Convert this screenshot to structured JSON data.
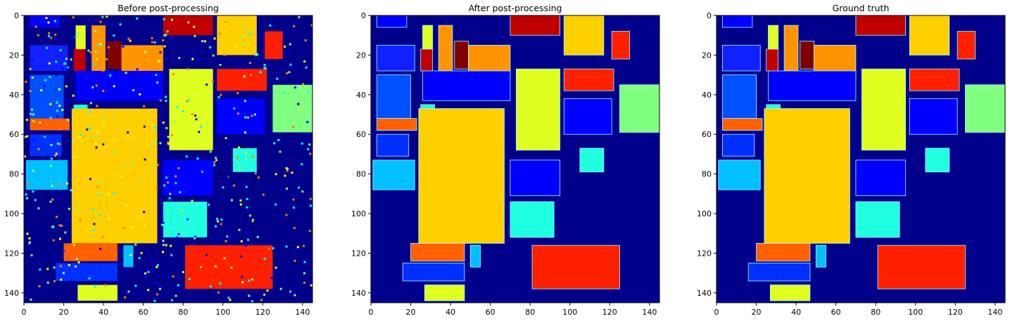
{
  "figure": {
    "panels": [
      {
        "id": "before",
        "title": "Before post-processing"
      },
      {
        "id": "after",
        "title": "After post-processing"
      },
      {
        "id": "gt",
        "title": "Ground truth"
      }
    ]
  },
  "chart_data": [
    {
      "type": "heatmap",
      "title": "Before post-processing",
      "xlabel": "",
      "ylabel": "",
      "xlim": [
        0,
        145
      ],
      "ylim": [
        145,
        0
      ],
      "xticks": [
        0,
        20,
        40,
        60,
        80,
        100,
        120,
        140
      ],
      "yticks": [
        0,
        20,
        40,
        60,
        80,
        100,
        120,
        140
      ],
      "colormap": "jet",
      "background_class_color": "#00008b",
      "grid": false,
      "noise": true
    },
    {
      "type": "heatmap",
      "title": "After post-processing",
      "xlabel": "",
      "ylabel": "",
      "xlim": [
        0,
        145
      ],
      "ylim": [
        145,
        0
      ],
      "xticks": [
        0,
        20,
        40,
        60,
        80,
        100,
        120,
        140
      ],
      "yticks": [
        0,
        20,
        40,
        60,
        80,
        100,
        120,
        140
      ],
      "colormap": "jet",
      "background_class_color": "#00008b",
      "grid": false,
      "noise": false
    },
    {
      "type": "heatmap",
      "title": "Ground truth",
      "xlabel": "",
      "ylabel": "",
      "xlim": [
        0,
        145
      ],
      "ylim": [
        145,
        0
      ],
      "xticks": [
        0,
        20,
        40,
        60,
        80,
        100,
        120,
        140
      ],
      "yticks": [
        0,
        20,
        40,
        60,
        80,
        100,
        120,
        140
      ],
      "colormap": "jet",
      "background_class_color": "#00008b",
      "grid": false,
      "noise": false
    }
  ],
  "class_colors": {
    "c1": "#0000ff",
    "c2": "#0050ff",
    "c3": "#00c0ff",
    "c4": "#20ffdf",
    "c5": "#80ff80",
    "c6": "#e0ff20",
    "c7": "#ffd000",
    "c8": "#ff9400",
    "c9": "#ff6000",
    "c10": "#ff2000",
    "c11": "#c00000",
    "c12": "#800000",
    "c13": "#1020ff",
    "c14": "#0030ff"
  },
  "class_regions": [
    {
      "cls": "c1",
      "x0": 3,
      "y0": 0,
      "x1": 18,
      "y1": 6
    },
    {
      "cls": "c13",
      "x0": 3,
      "y0": 15,
      "x1": 22,
      "y1": 28
    },
    {
      "cls": "c2",
      "x0": 3,
      "y0": 30,
      "x1": 20,
      "y1": 52
    },
    {
      "cls": "c9",
      "x0": 3,
      "y0": 52,
      "x1": 23,
      "y1": 58
    },
    {
      "cls": "c14",
      "x0": 3,
      "y0": 60,
      "x1": 19,
      "y1": 71
    },
    {
      "cls": "c3",
      "x0": 1,
      "y0": 73,
      "x1": 22,
      "y1": 88
    },
    {
      "cls": "c6",
      "x0": 26,
      "y0": 5,
      "x1": 31,
      "y1": 17
    },
    {
      "cls": "c11",
      "x0": 25,
      "y0": 17,
      "x1": 31,
      "y1": 28
    },
    {
      "cls": "c8",
      "x0": 34,
      "y0": 5,
      "x1": 41,
      "y1": 28
    },
    {
      "cls": "c12",
      "x0": 42,
      "y0": 13,
      "x1": 49,
      "y1": 27
    },
    {
      "cls": "c8",
      "x0": 49,
      "y0": 15,
      "x1": 70,
      "y1": 30
    },
    {
      "cls": "c4",
      "x0": 25,
      "y0": 45,
      "x1": 32,
      "y1": 69
    },
    {
      "cls": "c1",
      "x0": 26,
      "y0": 28,
      "x1": 70,
      "y1": 43
    },
    {
      "cls": "c7",
      "x0": 24,
      "y0": 47,
      "x1": 67,
      "y1": 115
    },
    {
      "cls": "c11",
      "x0": 70,
      "y0": 0,
      "x1": 95,
      "y1": 10
    },
    {
      "cls": "c7",
      "x0": 97,
      "y0": 0,
      "x1": 117,
      "y1": 20
    },
    {
      "cls": "c10",
      "x0": 121,
      "y0": 8,
      "x1": 130,
      "y1": 22
    },
    {
      "cls": "c6",
      "x0": 73,
      "y0": 27,
      "x1": 95,
      "y1": 68
    },
    {
      "cls": "c10",
      "x0": 97,
      "y0": 27,
      "x1": 122,
      "y1": 38
    },
    {
      "cls": "c5",
      "x0": 125,
      "y0": 35,
      "x1": 145,
      "y1": 59
    },
    {
      "cls": "c1",
      "x0": 97,
      "y0": 42,
      "x1": 121,
      "y1": 60
    },
    {
      "cls": "c1",
      "x0": 70,
      "y0": 73,
      "x1": 95,
      "y1": 91
    },
    {
      "cls": "c4",
      "x0": 70,
      "y0": 94,
      "x1": 92,
      "y1": 112
    },
    {
      "cls": "c4",
      "x0": 105,
      "y0": 67,
      "x1": 117,
      "y1": 79
    },
    {
      "cls": "c3",
      "x0": 50,
      "y0": 116,
      "x1": 55,
      "y1": 127
    },
    {
      "cls": "c9",
      "x0": 20,
      "y0": 115,
      "x1": 47,
      "y1": 124
    },
    {
      "cls": "c14",
      "x0": 16,
      "y0": 125,
      "x1": 47,
      "y1": 134
    },
    {
      "cls": "c6",
      "x0": 27,
      "y0": 136,
      "x1": 47,
      "y1": 144
    },
    {
      "cls": "c10",
      "x0": 81,
      "y0": 116,
      "x1": 125,
      "y1": 138
    }
  ]
}
